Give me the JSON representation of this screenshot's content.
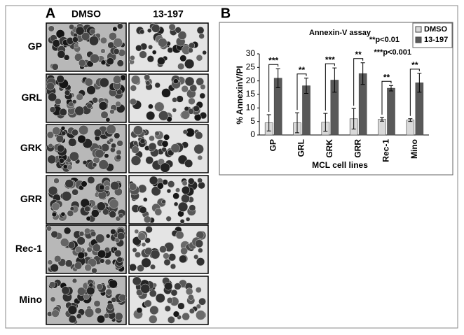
{
  "panel_a": {
    "label": "A",
    "columns": [
      "DMSO",
      "13-197"
    ],
    "rows": [
      "GP",
      "GRL",
      "GRK",
      "GRR",
      "Rec-1",
      "Mino"
    ]
  },
  "panel_b": {
    "label": "B"
  },
  "chart_data": {
    "type": "bar",
    "title": "Annexin-V assay",
    "y_label": "% AnnexinV/PI",
    "x_label": "MCL cell lines",
    "categories": [
      "GP",
      "GRL",
      "GRK",
      "GRR",
      "Rec-1",
      "Mino"
    ],
    "series": [
      {
        "name": "DMSO",
        "color": "#d9d9d9",
        "values": [
          4.5,
          4.5,
          4.7,
          6,
          5.8,
          5.5
        ],
        "errors": [
          3,
          3.7,
          3.3,
          3.8,
          0.7,
          0.5
        ]
      },
      {
        "name": "13-197",
        "color": "#595959",
        "values": [
          21,
          18.2,
          20.3,
          22.7,
          17.3,
          19.3
        ],
        "errors": [
          3.5,
          2.8,
          4.5,
          4,
          1,
          3.5
        ]
      }
    ],
    "significance": [
      "***",
      "**",
      "***",
      "**",
      "**",
      "**"
    ],
    "annotations": [
      "**p<0.01",
      "***p<0.001"
    ],
    "ylim": [
      0,
      30
    ],
    "yticks": [
      0,
      5,
      10,
      15,
      20,
      25,
      30
    ],
    "grid": false,
    "legend": "top-right"
  }
}
